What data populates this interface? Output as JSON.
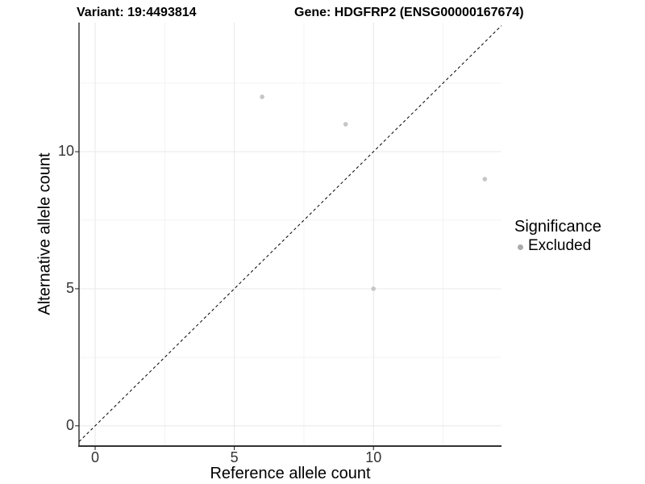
{
  "header": {
    "variant_title": "Variant: 19:4493814",
    "gene_title": "Gene: HDGFRP2 (ENSG00000167674)"
  },
  "chart_data": {
    "type": "scatter",
    "xlabel": "Reference allele count",
    "ylabel": "Alternative allele count",
    "xlim": [
      -0.58,
      14.6
    ],
    "ylim": [
      -0.74,
      14.71
    ],
    "x_ticks": [
      {
        "v": 0,
        "label": "0"
      },
      {
        "v": 5,
        "label": "5"
      },
      {
        "v": 10,
        "label": "10"
      }
    ],
    "y_ticks": [
      {
        "v": 0,
        "label": "0"
      },
      {
        "v": 5,
        "label": "5"
      },
      {
        "v": 10,
        "label": "10"
      }
    ],
    "x_minor": [
      2.5,
      7.5,
      12.5
    ],
    "y_minor": [
      2.5,
      7.5,
      12.5
    ],
    "grid": {
      "major_color": "#e8e8e8",
      "minor_color": "#f3f3f3",
      "background": "#ffffff"
    },
    "axis_color": "#333333",
    "series": [
      {
        "name": "Excluded",
        "color": "#c6c6c6",
        "marker_radius": 2.8,
        "points": [
          [
            6,
            12
          ],
          [
            9,
            11
          ],
          [
            14,
            9
          ],
          [
            10,
            5
          ]
        ]
      }
    ],
    "identity_line": {
      "equation": "y = x",
      "style": "dashed",
      "color": "#000000"
    },
    "legend": {
      "position": "right",
      "title": "Significance",
      "items": [
        {
          "label": "Excluded",
          "color": "#aaaaaa"
        }
      ]
    }
  }
}
